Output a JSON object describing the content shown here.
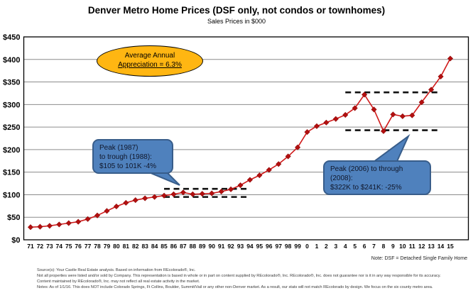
{
  "chart_data": {
    "type": "line",
    "title": "Denver Metro Home Prices (DSF only, not condos or townhomes)",
    "subtitle": "Sales Prices in $000",
    "x_labels": [
      "71",
      "72",
      "73",
      "74",
      "75",
      "76",
      "77",
      "78",
      "79",
      "80",
      "81",
      "82",
      "83",
      "84",
      "85",
      "86",
      "87",
      "88",
      "89",
      "90",
      "91",
      "92",
      "93",
      "94",
      "95",
      "96",
      "97",
      "98",
      "99",
      "0",
      "1",
      "2",
      "3",
      "4",
      "5",
      "6",
      "7",
      "8",
      "9",
      "10",
      "11",
      "12",
      "13",
      "14",
      "15"
    ],
    "values": [
      28,
      29,
      31,
      34,
      37,
      40,
      46,
      54,
      64,
      74,
      82,
      88,
      92,
      95,
      98,
      101,
      105,
      101,
      102,
      103,
      107,
      112,
      121,
      133,
      143,
      155,
      168,
      185,
      205,
      239,
      252,
      260,
      268,
      277,
      292,
      322,
      289,
      241,
      278,
      274,
      276,
      305,
      333,
      362,
      402
    ],
    "ylim": [
      0,
      450
    ],
    "ytick_step": 50,
    "ytick_prefix": "$",
    "grid": true,
    "legend": "none",
    "colors": {
      "line": "#d01b1b",
      "marker": "#b40f0f",
      "grid": "#8c8c8c",
      "frame": "#000000",
      "dashed": "#111111",
      "oval_fill": "#ffb612",
      "callout_fill": "#4f81bd",
      "callout_border": "#385d8a"
    },
    "dashed_lines": [
      {
        "name": "peak-1987-level",
        "value": 113,
        "from": "85",
        "to": "94"
      },
      {
        "name": "trough-1988-level",
        "value": 95,
        "from": "85",
        "to": "94"
      },
      {
        "name": "peak-2006-level",
        "value": 327,
        "from": "4",
        "to": "14"
      },
      {
        "name": "trough-2008-level",
        "value": 243,
        "from": "4",
        "to": "14"
      }
    ]
  },
  "annotations": {
    "oval": {
      "line1": "Average Annual",
      "line2": "Appreciation = 6.3%"
    },
    "callout_left": {
      "line1": "Peak (1987)",
      "line2": "to trough (1988):",
      "line3": "$105 to 101K -4%"
    },
    "callout_right": {
      "line1": "Peak (2006) to through",
      "line2": "(2008):",
      "line3": "$322K to $241K: -25%"
    }
  },
  "footer": {
    "dsf_note": "Note: DSF = Detached Single Family Home",
    "lines": [
      "Source(s): Your Castle Real Estate analysis. Based on information from REcolorado®, Inc.",
      "Not all properties were listed and/or sold by Company. This representation is based in whole or in part on content supplied by REcolorado®, Inc. REcolorado®, Inc. does not guarantee nor is it in any way responsible for its accuracy.",
      "Content maintained by REcolorado®, Inc. may not reflect all real estate activity in the market.",
      "Notes:   As of 1/1/16.  This does NOT include Colorado Springs, Ft Collins, Boulder, Summit/Vail or any other non-Denver market.  As a result, our stats will not match REcolorado by design.  We focus on the six county metro area."
    ]
  }
}
